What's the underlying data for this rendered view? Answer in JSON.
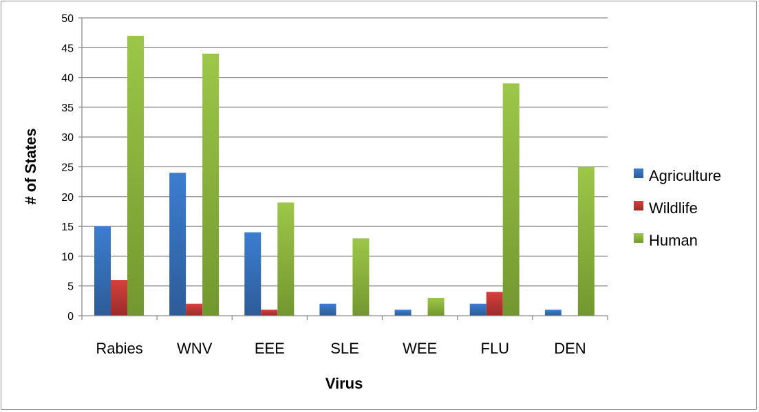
{
  "chart_data": {
    "type": "bar",
    "title": "",
    "xlabel": "Virus",
    "ylabel": "# of States",
    "ylim": [
      0,
      50
    ],
    "yticks": [
      0,
      5,
      10,
      15,
      20,
      25,
      30,
      35,
      40,
      45,
      50
    ],
    "grid": true,
    "legend_position": "right",
    "categories": [
      "Rabies",
      "WNV",
      "EEE",
      "SLE",
      "WEE",
      "FLU",
      "DEN"
    ],
    "series": [
      {
        "name": "Agriculture",
        "color": "#3a78c6",
        "values": [
          15,
          24,
          14,
          2,
          1,
          2,
          1
        ]
      },
      {
        "name": "Wildlife",
        "color": "#cc3b38",
        "values": [
          6,
          2,
          1,
          0,
          0,
          4,
          0
        ]
      },
      {
        "name": "Human",
        "color": "#8bb43e",
        "values": [
          47,
          44,
          19,
          13,
          3,
          39,
          25
        ]
      }
    ]
  }
}
